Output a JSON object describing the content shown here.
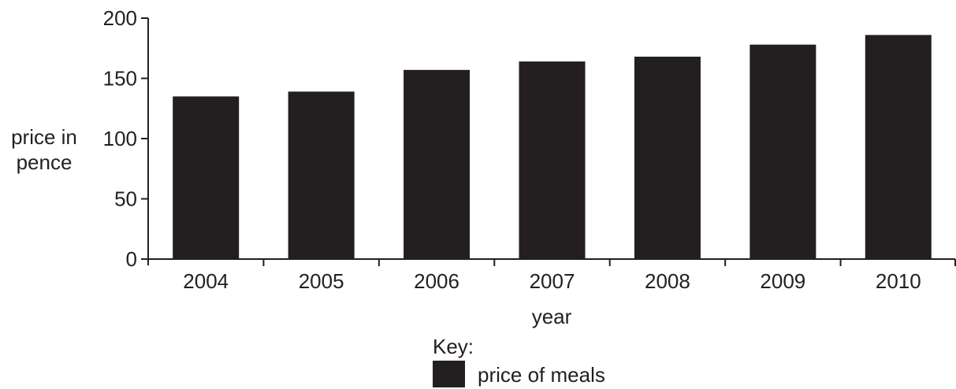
{
  "chart_data": {
    "type": "bar",
    "categories": [
      "2004",
      "2005",
      "2006",
      "2007",
      "2008",
      "2009",
      "2010"
    ],
    "series": [
      {
        "name": "price of meals",
        "values": [
          135,
          139,
          157,
          164,
          168,
          178,
          186
        ]
      }
    ],
    "title": "",
    "xlabel": "year",
    "ylabel": [
      "price in",
      "pence"
    ],
    "ylim": [
      0,
      200
    ],
    "yticks": [
      "0",
      "50",
      "100",
      "150",
      "200"
    ],
    "grid": false,
    "legend": {
      "title": "Key:",
      "placement": "bottom-center"
    },
    "colors": {
      "bar": "#231f20",
      "text": "#231f20",
      "axis": "#231f20"
    }
  }
}
